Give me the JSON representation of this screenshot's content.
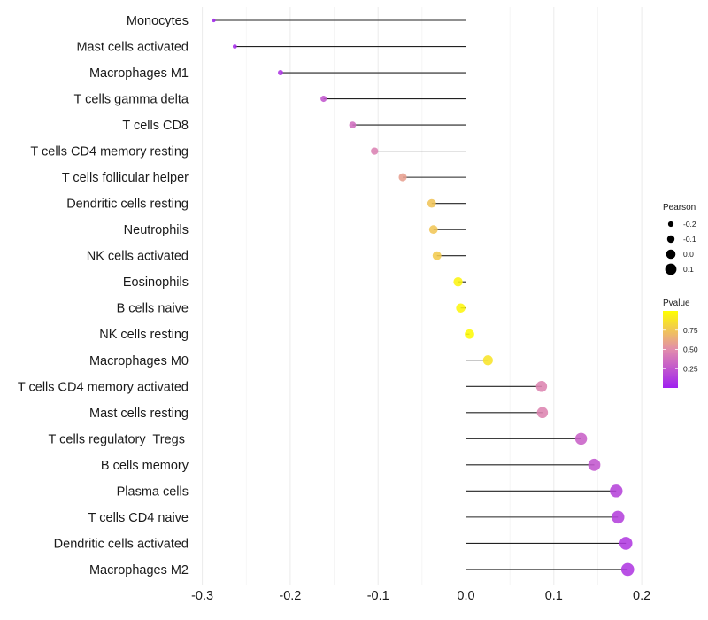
{
  "chart_data": {
    "type": "scatter",
    "subtype": "lollipop",
    "title": "",
    "xlabel": "",
    "ylabel": "",
    "xlim": [
      -0.3,
      0.2
    ],
    "xticks": [
      -0.3,
      -0.2,
      -0.1,
      0.0,
      0.1,
      0.2
    ],
    "xtick_labels": [
      "-0.3",
      "-0.2",
      "-0.1",
      "0.0",
      "0.1",
      "0.2"
    ],
    "grid": "vertical major and minor",
    "categories": [
      "Monocytes",
      "Mast cells activated",
      "Macrophages M1",
      "T cells gamma delta",
      "T cells CD8",
      "T cells CD4 memory resting",
      "T cells follicular helper",
      "Dendritic cells resting",
      "Neutrophils",
      "NK cells activated",
      "Eosinophils",
      "B cells naive",
      "NK cells resting",
      "Macrophages M0",
      "T cells CD4 memory activated",
      "Mast cells resting",
      "T cells regulatory  Tregs ",
      "B cells memory",
      "Plasma cells",
      "T cells CD4 naive",
      "Dendritic cells activated",
      "Macrophages M2"
    ],
    "pearson": [
      -0.287,
      -0.263,
      -0.211,
      -0.162,
      -0.129,
      -0.104,
      -0.072,
      -0.039,
      -0.037,
      -0.033,
      -0.009,
      -0.006,
      0.004,
      0.025,
      0.086,
      0.087,
      0.131,
      0.146,
      0.171,
      0.173,
      0.182,
      0.184
    ],
    "pvalue": [
      0.02,
      0.04,
      0.1,
      0.25,
      0.36,
      0.45,
      0.58,
      0.74,
      0.75,
      0.77,
      0.95,
      0.96,
      0.98,
      0.88,
      0.46,
      0.46,
      0.3,
      0.25,
      0.16,
      0.15,
      0.12,
      0.11
    ],
    "legend": {
      "position": "right",
      "size": {
        "title": "Pearson",
        "values": [
          -0.2,
          -0.1,
          0.0,
          0.1
        ],
        "labels": [
          "-0.2",
          "-0.1",
          "0.0",
          "0.1"
        ]
      },
      "color": {
        "title": "Pvalue",
        "range": [
          0.0,
          1.0
        ],
        "ticks": [
          0.25,
          0.5,
          0.75
        ],
        "labels": [
          "0.25",
          "0.50",
          "0.75"
        ],
        "low_color": "#a020f0",
        "mid_color": "#e28dac",
        "high_color": "#ffff00"
      }
    }
  }
}
